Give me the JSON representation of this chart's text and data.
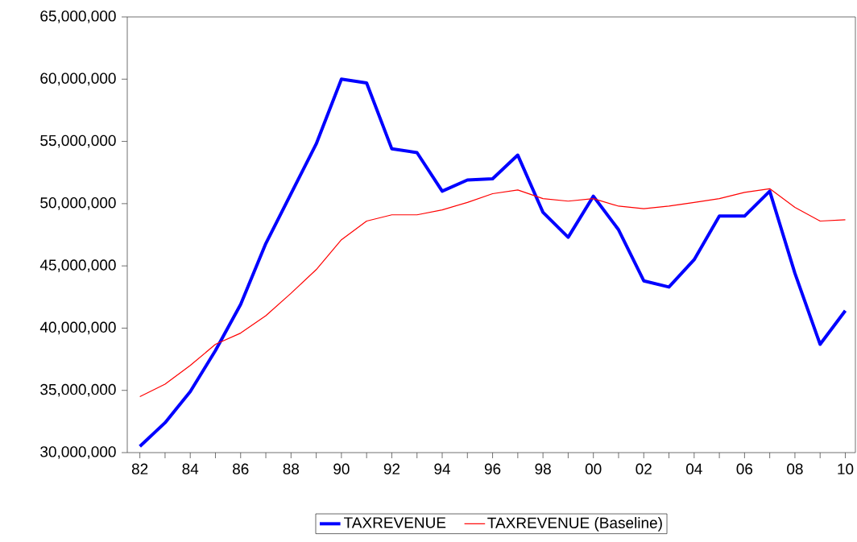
{
  "chart_data": {
    "type": "line",
    "x": [
      1982,
      1983,
      1984,
      1985,
      1986,
      1987,
      1988,
      1989,
      1990,
      1991,
      1992,
      1993,
      1994,
      1995,
      1996,
      1997,
      1998,
      1999,
      2000,
      2001,
      2002,
      2003,
      2004,
      2005,
      2006,
      2007,
      2008,
      2009,
      2010
    ],
    "series": [
      {
        "name": "TAXREVENUE",
        "color": "#0000ff",
        "values": [
          30500000,
          32400000,
          34900000,
          38200000,
          41900000,
          46800000,
          50800000,
          54800000,
          60000000,
          59700000,
          54400000,
          54100000,
          51000000,
          51900000,
          52000000,
          53900000,
          49300000,
          47300000,
          50600000,
          47900000,
          43800000,
          43300000,
          45500000,
          49000000,
          49000000,
          51000000,
          44400000,
          38700000,
          41400000
        ]
      },
      {
        "name": "TAXREVENUE (Baseline)",
        "color": "#ff0000",
        "values": [
          34500000,
          35500000,
          37000000,
          38700000,
          39600000,
          41000000,
          42800000,
          44700000,
          47100000,
          48600000,
          49100000,
          49100000,
          49500000,
          50100000,
          50800000,
          51100000,
          50400000,
          50200000,
          50400000,
          49800000,
          49600000,
          49800000,
          50100000,
          50400000,
          50900000,
          51200000,
          49700000,
          48600000,
          48700000
        ]
      }
    ],
    "xlim": [
      1981.5,
      2010.4
    ],
    "xticks": [
      {
        "value": 1982,
        "label": "82"
      },
      {
        "value": 1983,
        "label": null
      },
      {
        "value": 1984,
        "label": "84"
      },
      {
        "value": 1985,
        "label": null
      },
      {
        "value": 1986,
        "label": "86"
      },
      {
        "value": 1987,
        "label": null
      },
      {
        "value": 1988,
        "label": "88"
      },
      {
        "value": 1989,
        "label": null
      },
      {
        "value": 1990,
        "label": "90"
      },
      {
        "value": 1991,
        "label": null
      },
      {
        "value": 1992,
        "label": "92"
      },
      {
        "value": 1993,
        "label": null
      },
      {
        "value": 1994,
        "label": "94"
      },
      {
        "value": 1995,
        "label": null
      },
      {
        "value": 1996,
        "label": "96"
      },
      {
        "value": 1997,
        "label": null
      },
      {
        "value": 1998,
        "label": "98"
      },
      {
        "value": 1999,
        "label": null
      },
      {
        "value": 2000,
        "label": "00"
      },
      {
        "value": 2001,
        "label": null
      },
      {
        "value": 2002,
        "label": "02"
      },
      {
        "value": 2003,
        "label": null
      },
      {
        "value": 2004,
        "label": "04"
      },
      {
        "value": 2005,
        "label": null
      },
      {
        "value": 2006,
        "label": "06"
      },
      {
        "value": 2007,
        "label": null
      },
      {
        "value": 2008,
        "label": "08"
      },
      {
        "value": 2009,
        "label": null
      },
      {
        "value": 2010,
        "label": "10"
      }
    ],
    "ylim": [
      30000000,
      65000000
    ],
    "yticks": [
      {
        "value": 30000000,
        "label": "30,000,000"
      },
      {
        "value": 35000000,
        "label": "35,000,000"
      },
      {
        "value": 40000000,
        "label": "40,000,000"
      },
      {
        "value": 45000000,
        "label": "45,000,000"
      },
      {
        "value": 50000000,
        "label": "50,000,000"
      },
      {
        "value": 55000000,
        "label": "55,000,000"
      },
      {
        "value": 60000000,
        "label": "60,000,000"
      },
      {
        "value": 65000000,
        "label": "65,000,000"
      }
    ],
    "grid": false,
    "legend": "bottom",
    "marker": "none",
    "line_style": "solid"
  }
}
